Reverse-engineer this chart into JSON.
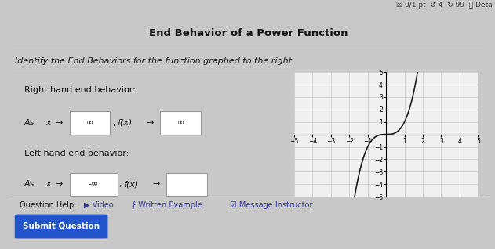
{
  "title": "End Behavior of a Power Function",
  "subtitle": "Identify the End Behaviors for the function graphed to the right",
  "right_behavior_label": "Right hand end behavior:",
  "left_behavior_label": "Left hand end behavior:",
  "box_right_x": "∞",
  "box_right_fx": "∞",
  "box_left_x": "-∞",
  "box_left_fx": "",
  "xlim": [
    -5,
    5
  ],
  "ylim": [
    -5,
    5
  ],
  "xticks": [
    -5,
    -4,
    -3,
    -2,
    -1,
    1,
    2,
    3,
    4,
    5
  ],
  "yticks": [
    -5,
    -4,
    -3,
    -2,
    -1,
    1,
    2,
    3,
    4,
    5
  ],
  "curve_color": "#1a1a1a",
  "grid_color": "#bbbbbb",
  "outer_bg": "#c8c8c8",
  "panel_bg": "#ffffff",
  "subtitle_bg": "#eeeeee",
  "graph_bg": "#f0f0f0",
  "box_edge": "#999999",
  "submit_bg": "#2255cc",
  "submit_text": "Submit Question",
  "top_right_text": "☒ 0/1 pt  ↺ 4  ↻ 99  ⓘ Deta",
  "graph_power": 3,
  "question_help_text": "Question Help:",
  "video_text": "▶ Video",
  "written_text": "⨏ Written Example",
  "message_text": "☑ Message Instructor"
}
